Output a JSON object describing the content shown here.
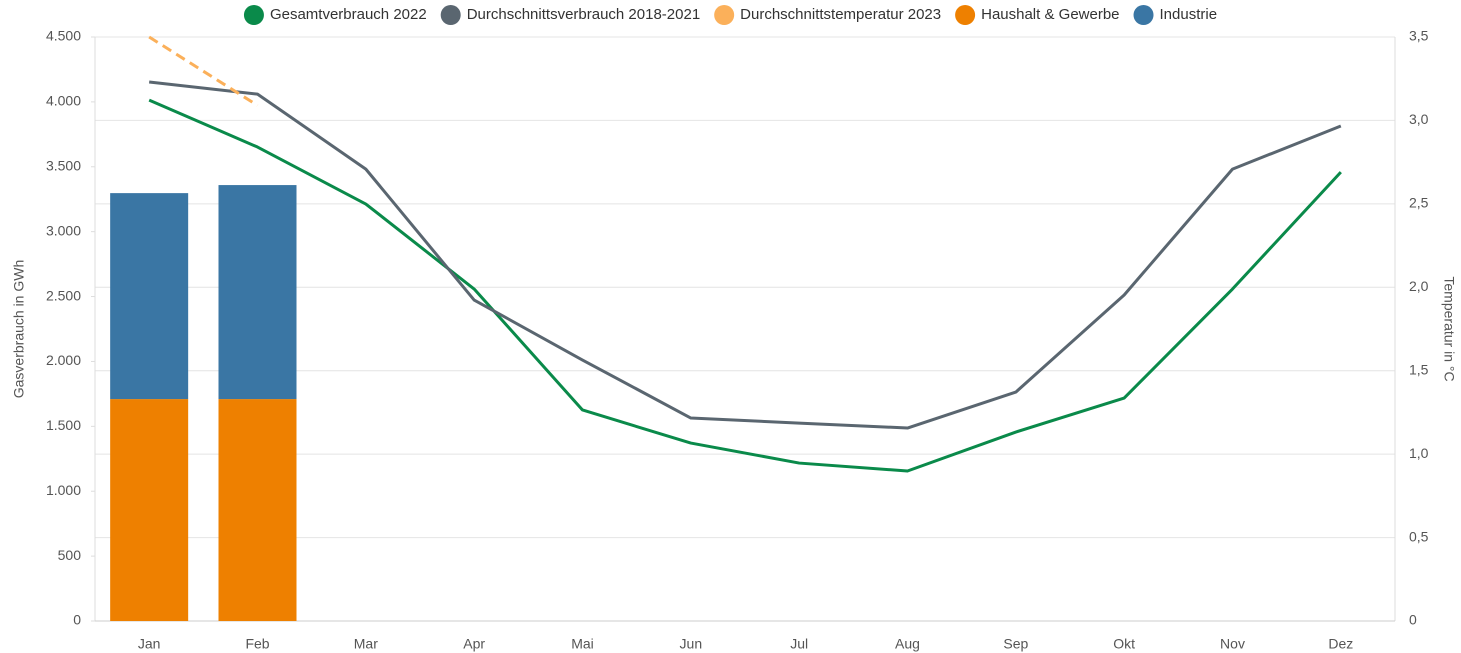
{
  "chart_data": {
    "type": "combo",
    "stacked": true,
    "grid": true,
    "legend": "top",
    "y_label": "Gasverbrauch in GWh",
    "y2_label": "Temperatur in °C",
    "categories": [
      "Jan",
      "Feb",
      "Mar",
      "Apr",
      "Mai",
      "Jun",
      "Jul",
      "Aug",
      "Sep",
      "Okt",
      "Nov",
      "Dez"
    ],
    "ylim": [
      0,
      4500
    ],
    "yticks": [
      0,
      500,
      {
        "value": 1000,
        "label": "1.000"
      },
      {
        "value": 1500,
        "label": "1.500"
      },
      {
        "value": 2000,
        "label": "2.000"
      },
      {
        "value": 2500,
        "label": "2.500"
      },
      {
        "value": 3000,
        "label": "3.000"
      },
      {
        "value": 3500,
        "label": "3.500"
      },
      {
        "value": 4000,
        "label": "4.000"
      },
      {
        "value": 4500,
        "label": "4.500"
      }
    ],
    "y2lim": [
      0,
      3.5
    ],
    "y2ticks": [
      0,
      {
        "value": 0.5,
        "label": "0,5"
      },
      {
        "value": 1,
        "label": "1,0"
      },
      {
        "value": 1.5,
        "label": "1,5"
      },
      {
        "value": 2,
        "label": "2,0"
      },
      {
        "value": 2.5,
        "label": "2,5"
      },
      {
        "value": 3,
        "label": "3,0"
      },
      {
        "value": 3.5,
        "label": "3,5"
      }
    ],
    "series": [
      {
        "name": "Gesamtverbrauch 2022",
        "type": "line",
        "color": "#0a8a4a",
        "values": [
          4014,
          3652,
          3213,
          2558,
          1626,
          1371,
          1217,
          1156,
          1456,
          1718,
          2558,
          3459
        ]
      },
      {
        "name": "Durchschnittsverbrauch 2018-2021",
        "type": "line",
        "color": "#5a6670",
        "values": [
          4153,
          4060,
          3482,
          2473,
          2011,
          1564,
          1525,
          1487,
          1764,
          2512,
          3482,
          3814
        ]
      },
      {
        "name": "Durchschnittstemperatur 2023",
        "type": "line",
        "dashed": true,
        "axis": "y2",
        "color": "#fbb05a",
        "values": [
          3.5,
          3.09,
          null,
          null,
          null,
          null,
          null,
          null,
          null,
          null,
          null,
          null
        ]
      },
      {
        "name": "Haushalt & Gewerbe",
        "type": "bar",
        "color": "#ee8000",
        "values": [
          1710,
          1710,
          null,
          null,
          null,
          null,
          null,
          null,
          null,
          null,
          null,
          null
        ]
      },
      {
        "name": "Industrie",
        "type": "bar",
        "color": "#3a76a4",
        "values": [
          1587,
          1649,
          null,
          null,
          null,
          null,
          null,
          null,
          null,
          null,
          null,
          null
        ]
      }
    ]
  }
}
